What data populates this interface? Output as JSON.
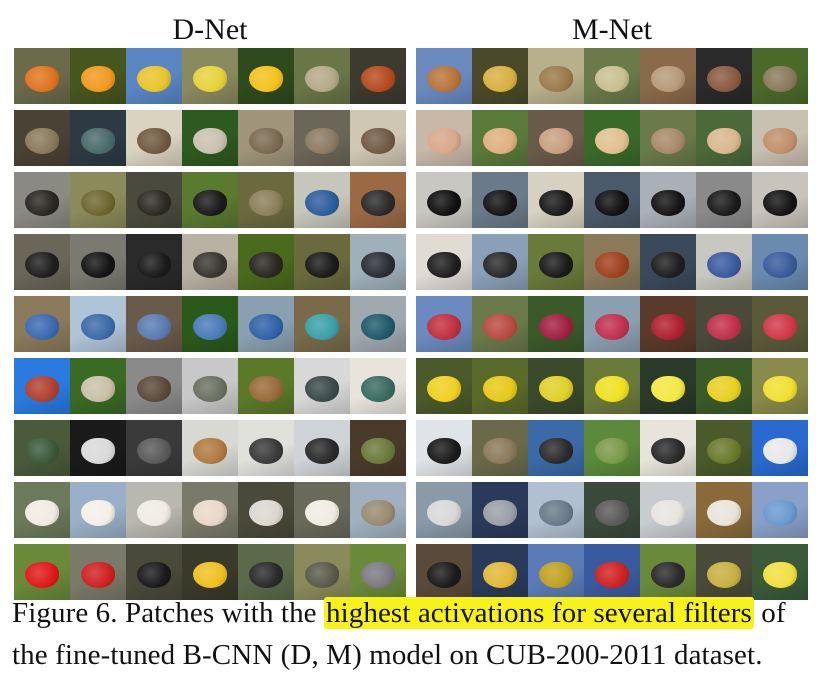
{
  "figure": {
    "left_title": "D-Net",
    "right_title": "M-Net",
    "caption_prefix": "Figure 6.  Patches with the ",
    "caption_highlight": "highest activations for several filters",
    "caption_suffix": " of the fine-tuned B-CNN (D, M) model on CUB-200-2011 dataset."
  },
  "grids": {
    "d_net": [
      [
        [
          "#6b6a4a",
          "#e0741e"
        ],
        [
          "#46561f",
          "#f09a1e"
        ],
        [
          "#5a86c4",
          "#e9c42a"
        ],
        [
          "#8a8a60",
          "#e6d23c"
        ],
        [
          "#2f4a1c",
          "#f3c21c"
        ],
        [
          "#6a7548",
          "#b5a98a"
        ],
        [
          "#3d3a30",
          "#b74a1e"
        ]
      ],
      [
        [
          "#4a4234",
          "#8a7a5c"
        ],
        [
          "#2d3a44",
          "#4a6a6a"
        ],
        [
          "#d9d3c0",
          "#6e5a40"
        ],
        [
          "#2d5a1f",
          "#c9c0b0"
        ],
        [
          "#a0957a",
          "#7b6a50"
        ],
        [
          "#6b6658",
          "#8c7a62"
        ],
        [
          "#cfc7b3",
          "#705a44"
        ]
      ],
      [
        [
          "#8a8a82",
          "#2a2622"
        ],
        [
          "#8b8a5a",
          "#6e6630"
        ],
        [
          "#4a4a3e",
          "#2d2a24"
        ],
        [
          "#5a7a2f",
          "#1a1a1a"
        ],
        [
          "#6b6a3e",
          "#8b805a"
        ],
        [
          "#c6c6ba",
          "#2d5d9e"
        ],
        [
          "#9b6a45",
          "#2a2a2a"
        ]
      ],
      [
        [
          "#6a6658",
          "#1e1e1e"
        ],
        [
          "#7a7a70",
          "#141414"
        ],
        [
          "#2a2a2a",
          "#1a1a1a"
        ],
        [
          "#b8b0a0",
          "#3a3630"
        ],
        [
          "#4a6a1e",
          "#2a2620"
        ],
        [
          "#6a6a3c",
          "#1a1a1a"
        ],
        [
          "#9fb0ba",
          "#2a2e34"
        ]
      ],
      [
        [
          "#8a7a5a",
          "#3a6ab0"
        ],
        [
          "#b0c4d8",
          "#3d6aa8"
        ],
        [
          "#6a5a4a",
          "#5a7ab0"
        ],
        [
          "#2a5a1a",
          "#4a7ab8"
        ],
        [
          "#8aa0b0",
          "#2f62a8"
        ],
        [
          "#7a6a4a",
          "#3aa0a8"
        ],
        [
          "#a0a8b0",
          "#1f5a6a"
        ]
      ],
      [
        [
          "#2a7ae0",
          "#b04030"
        ],
        [
          "#3a6a24",
          "#c8c0a8"
        ],
        [
          "#8a8a8a",
          "#5a4a3a"
        ],
        [
          "#c8c8c8",
          "#6a7060"
        ],
        [
          "#5a7a2a",
          "#9a6a3a"
        ],
        [
          "#d8d8d8",
          "#3a4a4a"
        ],
        [
          "#e8e4dc",
          "#3a6a60"
        ]
      ],
      [
        [
          "#4a5a3a",
          "#3a5a3a"
        ],
        [
          "#1a1a1a",
          "#dadada"
        ],
        [
          "#3a3a3a",
          "#5a5a5a"
        ],
        [
          "#d8d8d4",
          "#b07a40"
        ],
        [
          "#e0e0dc",
          "#3a3a3a"
        ],
        [
          "#d0d4d8",
          "#2a2a2a"
        ],
        [
          "#4a3a2a",
          "#6a7a3a"
        ]
      ],
      [
        [
          "#6a7a5a",
          "#f0ece4"
        ],
        [
          "#9ab0c8",
          "#f4f0e8"
        ],
        [
          "#b8b8b0",
          "#f0ece4"
        ],
        [
          "#7a7a6a",
          "#e8d8c8"
        ],
        [
          "#4a4a3a",
          "#dcd8d0"
        ],
        [
          "#6a6a5a",
          "#f0ece4"
        ],
        [
          "#a0b0c0",
          "#9a8a70"
        ]
      ],
      [
        [
          "#6a8a3a",
          "#e01818"
        ],
        [
          "#7a7a6a",
          "#d02020"
        ],
        [
          "#4a4a3a",
          "#1a1a1a"
        ],
        [
          "#3a3a2a",
          "#f0c020"
        ],
        [
          "#5a6a4a",
          "#2a2a2a"
        ],
        [
          "#8a8a5a",
          "#5a5a4a"
        ],
        [
          "#6a8a3a",
          "#7a7a80"
        ]
      ]
    ],
    "m_net": [
      [
        [
          "#6a8ac0",
          "#b8743a"
        ],
        [
          "#4a4a2a",
          "#d8b040"
        ],
        [
          "#b8b08a",
          "#9a7a4a"
        ],
        [
          "#6a7a4a",
          "#c8c090"
        ],
        [
          "#8a6a4a",
          "#b89a7a"
        ],
        [
          "#2a2a2a",
          "#8a5a40"
        ],
        [
          "#4a6a2a",
          "#8a7a5a"
        ]
      ],
      [
        [
          "#c8b8a8",
          "#d8a88a"
        ],
        [
          "#5a7a3a",
          "#e0b080"
        ],
        [
          "#6a5a4a",
          "#c8a080"
        ],
        [
          "#3a6a2a",
          "#e0c090"
        ],
        [
          "#6a7a4a",
          "#a88a6a"
        ],
        [
          "#4a6a3a",
          "#d8b890"
        ],
        [
          "#c8c0b0",
          "#c0906a"
        ]
      ],
      [
        [
          "#c8c8c0",
          "#101010"
        ],
        [
          "#6a7a8a",
          "#141414"
        ],
        [
          "#d8d0c0",
          "#1a1a1a"
        ],
        [
          "#4a5a6a",
          "#101010"
        ],
        [
          "#aab0b8",
          "#141414"
        ],
        [
          "#8a8a8a",
          "#1a1a1a"
        ],
        [
          "#c8c4bc",
          "#141414"
        ]
      ],
      [
        [
          "#e0dcd4",
          "#1e1e1e"
        ],
        [
          "#8aa0b8",
          "#2a2a2a"
        ],
        [
          "#6a7a3a",
          "#1a1a1a"
        ],
        [
          "#8a7a5a",
          "#a0401e"
        ],
        [
          "#3a4a5a",
          "#1e1e1e"
        ],
        [
          "#c8c8c0",
          "#3a5aa0"
        ],
        [
          "#6a8ab0",
          "#3a5a9a"
        ]
      ],
      [
        [
          "#6a8ac0",
          "#c03040"
        ],
        [
          "#6a7a4a",
          "#b84a40"
        ],
        [
          "#3a5a2a",
          "#a02040"
        ],
        [
          "#8aa0b0",
          "#c03050"
        ],
        [
          "#5a3a2a",
          "#b02030"
        ],
        [
          "#4a4a3a",
          "#c0304a"
        ],
        [
          "#5a5a3a",
          "#d03848"
        ]
      ],
      [
        [
          "#4a5a2a",
          "#f0d020"
        ],
        [
          "#5a6a2a",
          "#e8c818"
        ],
        [
          "#3a4a2a",
          "#e0d028"
        ],
        [
          "#6a7a3a",
          "#f0e020"
        ],
        [
          "#2a3a2a",
          "#f4e840"
        ],
        [
          "#3a5a2a",
          "#e8d020"
        ],
        [
          "#8a8a4a",
          "#f0e030"
        ]
      ],
      [
        [
          "#e0e4e8",
          "#1a1a1a"
        ],
        [
          "#6a6a4a",
          "#8a7a5a"
        ],
        [
          "#3a6aa8",
          "#2a2a2a"
        ],
        [
          "#5a8a3a",
          "#7a9a4a"
        ],
        [
          "#e8e4dc",
          "#2a2a2a"
        ],
        [
          "#4a5a2a",
          "#6a7a2a"
        ],
        [
          "#2a6ad0",
          "#e8e8e8"
        ]
      ],
      [
        [
          "#8a9aa8",
          "#d8d8d8"
        ],
        [
          "#2a3a5a",
          "#9aa0a8"
        ],
        [
          "#b0c0d0",
          "#6a7a8a"
        ],
        [
          "#3a4a3a",
          "#5a5a5a"
        ],
        [
          "#c8ccd0",
          "#e8e4e0"
        ],
        [
          "#8a6a3a",
          "#e8e4dc"
        ],
        [
          "#8aa0c8",
          "#6a9ad0"
        ]
      ],
      [
        [
          "#5a4a3a",
          "#1a1a1a"
        ],
        [
          "#2a3a5a",
          "#e0b838"
        ],
        [
          "#5a7ab8",
          "#c0a020"
        ],
        [
          "#3a5aa0",
          "#d02020"
        ],
        [
          "#6a8a3a",
          "#2a2a2a"
        ],
        [
          "#4a4a3a",
          "#c8b040"
        ],
        [
          "#3a5a3a",
          "#f0e040"
        ]
      ]
    ]
  }
}
